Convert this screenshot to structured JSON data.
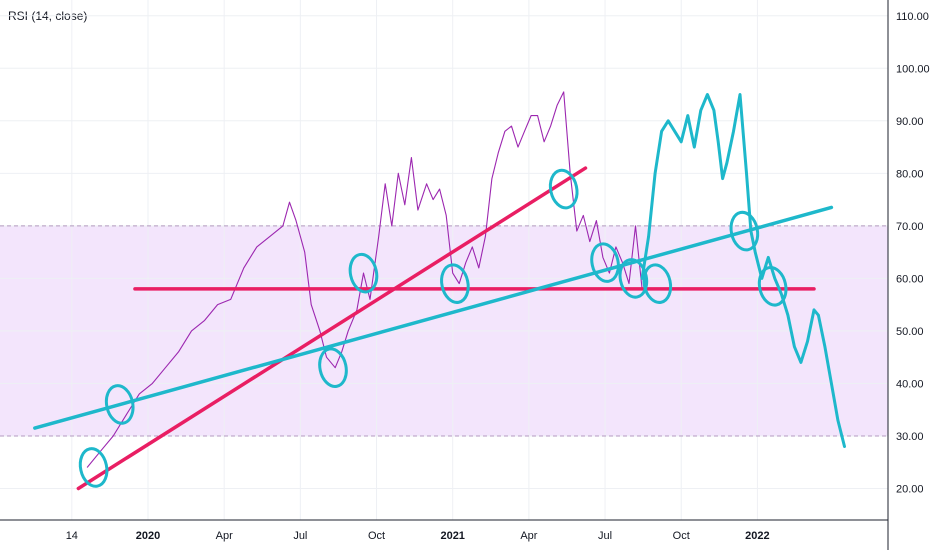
{
  "indicator_label": "RSI (14, close)",
  "colors": {
    "rsi_line": "#9c27b0",
    "band_fill": "#f3e5fc",
    "band_border": "#b39ac0",
    "grid": "#eef0f4",
    "axis_text": "#131722",
    "trend_red": "#e91e63",
    "trend_cyan": "#1eb8cb",
    "drawing_cyan": "#1eb8cb"
  },
  "chart_data": {
    "type": "line",
    "title": "",
    "xlabel": "",
    "ylabel": "",
    "ylim": [
      14,
      113
    ],
    "y_ticks": [
      "110.00",
      "100.00",
      "90.00",
      "80.00",
      "70.00",
      "60.00",
      "50.00",
      "40.00",
      "30.00",
      "20.00"
    ],
    "x_tick_labels": [
      "14",
      "2020",
      "Apr",
      "Jul",
      "Oct",
      "2021",
      "Apr",
      "Jul",
      "Oct",
      "2022"
    ],
    "bold_x_ticks": [
      "2020",
      "2021",
      "2022"
    ],
    "overbought": 70,
    "oversold": 30,
    "grid": true,
    "series": [
      {
        "values": [
          [
            1.2,
            24
          ],
          [
            1.5,
            27
          ],
          [
            1.8,
            30
          ],
          [
            2.1,
            34
          ],
          [
            2.4,
            38
          ],
          [
            2.7,
            40
          ],
          [
            3.0,
            43
          ],
          [
            3.3,
            46
          ],
          [
            3.6,
            50
          ],
          [
            3.9,
            52
          ],
          [
            4.2,
            55
          ],
          [
            4.5,
            56
          ],
          [
            4.8,
            62
          ],
          [
            5.1,
            66
          ],
          [
            5.4,
            68
          ],
          [
            5.7,
            70
          ],
          [
            5.85,
            74.5
          ],
          [
            6.0,
            71
          ],
          [
            6.2,
            65
          ],
          [
            6.35,
            55
          ],
          [
            6.55,
            50
          ],
          [
            6.7,
            45
          ],
          [
            6.9,
            43
          ],
          [
            7.05,
            46
          ],
          [
            7.2,
            50
          ],
          [
            7.4,
            54
          ],
          [
            7.55,
            61
          ],
          [
            7.7,
            56
          ],
          [
            7.9,
            68
          ],
          [
            8.05,
            78
          ],
          [
            8.2,
            70
          ],
          [
            8.35,
            80
          ],
          [
            8.5,
            74
          ],
          [
            8.65,
            83
          ],
          [
            8.8,
            73
          ],
          [
            9.0,
            78
          ],
          [
            9.15,
            75
          ],
          [
            9.3,
            77
          ],
          [
            9.45,
            72
          ],
          [
            9.6,
            61
          ],
          [
            9.75,
            59
          ],
          [
            9.9,
            63
          ],
          [
            10.05,
            66
          ],
          [
            10.2,
            62
          ],
          [
            10.35,
            68
          ],
          [
            10.5,
            79
          ],
          [
            10.65,
            84
          ],
          [
            10.8,
            88
          ],
          [
            10.95,
            89
          ],
          [
            11.1,
            85
          ],
          [
            11.25,
            88
          ],
          [
            11.4,
            91
          ],
          [
            11.55,
            91
          ],
          [
            11.7,
            86
          ],
          [
            11.85,
            89
          ],
          [
            12.0,
            93
          ],
          [
            12.15,
            95.5
          ],
          [
            12.3,
            80
          ],
          [
            12.45,
            69
          ],
          [
            12.6,
            72
          ],
          [
            12.75,
            67
          ],
          [
            12.9,
            71
          ],
          [
            13.05,
            64
          ],
          [
            13.2,
            61
          ],
          [
            13.35,
            66
          ],
          [
            13.5,
            63
          ],
          [
            13.65,
            59
          ],
          [
            13.8,
            70
          ],
          [
            13.95,
            58
          ]
        ]
      }
    ],
    "hand_drawn_continuation": [
      [
        13.95,
        60
      ],
      [
        14.1,
        68
      ],
      [
        14.25,
        80
      ],
      [
        14.4,
        88
      ],
      [
        14.55,
        90
      ],
      [
        14.7,
        88
      ],
      [
        14.85,
        86
      ],
      [
        15.0,
        91
      ],
      [
        15.15,
        85
      ],
      [
        15.3,
        92
      ],
      [
        15.45,
        95
      ],
      [
        15.6,
        92
      ],
      [
        15.7,
        86
      ],
      [
        15.8,
        79
      ],
      [
        15.9,
        82
      ],
      [
        16.05,
        88
      ],
      [
        16.2,
        95
      ],
      [
        16.35,
        80
      ],
      [
        16.45,
        69
      ],
      [
        16.55,
        65
      ],
      [
        16.7,
        60
      ],
      [
        16.85,
        64
      ],
      [
        17.0,
        60
      ],
      [
        17.15,
        57
      ],
      [
        17.3,
        53
      ],
      [
        17.45,
        47
      ],
      [
        17.6,
        44
      ],
      [
        17.75,
        48
      ],
      [
        17.9,
        54
      ],
      [
        18.0,
        53
      ],
      [
        18.15,
        47
      ],
      [
        18.3,
        40
      ],
      [
        18.45,
        33
      ],
      [
        18.6,
        28
      ]
    ],
    "trendlines": [
      {
        "color_key": "trend_red",
        "from": [
          1.0,
          20
        ],
        "to": [
          12.65,
          81
        ]
      },
      {
        "color_key": "trend_red",
        "from": [
          2.3,
          58
        ],
        "to": [
          17.9,
          58
        ]
      },
      {
        "color_key": "trend_cyan",
        "from": [
          0.0,
          31.5
        ],
        "to": [
          18.3,
          73.5
        ]
      }
    ],
    "circled_points": [
      [
        1.35,
        24
      ],
      [
        1.95,
        36
      ],
      [
        6.85,
        43
      ],
      [
        7.55,
        61
      ],
      [
        9.65,
        59
      ],
      [
        12.15,
        77
      ],
      [
        13.1,
        63
      ],
      [
        13.75,
        60
      ],
      [
        14.3,
        59
      ],
      [
        16.3,
        69
      ],
      [
        16.95,
        58.5
      ]
    ]
  }
}
